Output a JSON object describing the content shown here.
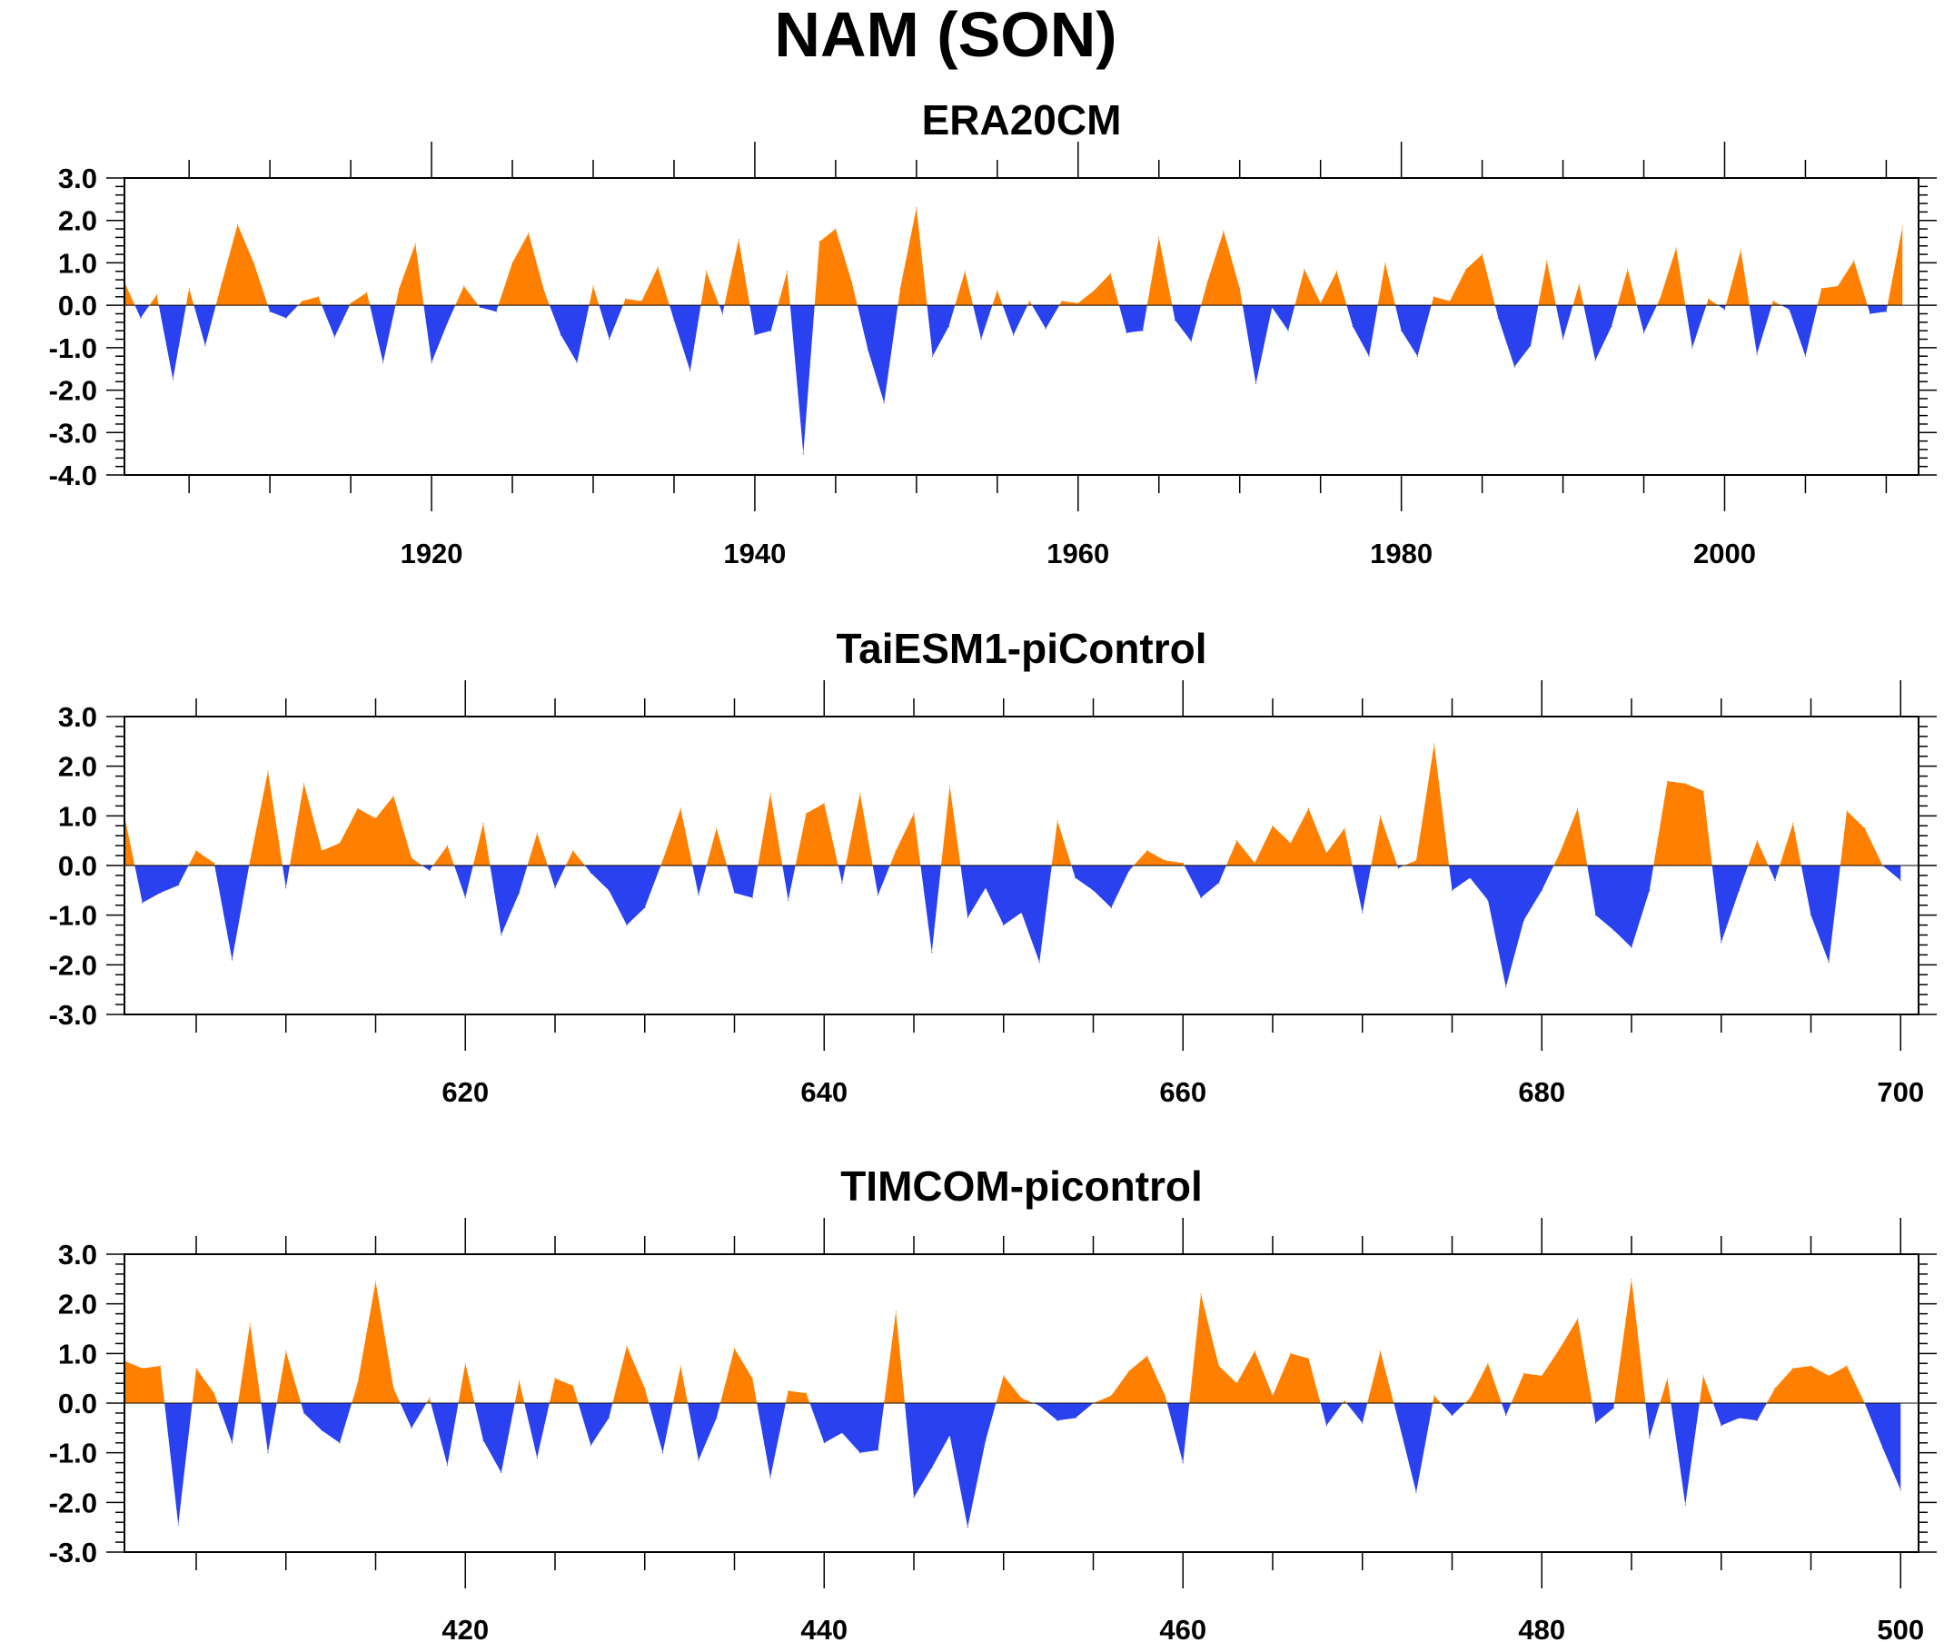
{
  "title": "NAM (SON)",
  "colors": {
    "positive": "#ff7f00",
    "negative": "#2a41f0",
    "axis": "#000000"
  },
  "chart_data": [
    {
      "type": "area",
      "title": "ERA20CM",
      "xlim": [
        1901,
        2012
      ],
      "ylim": [
        -4,
        3
      ],
      "yticks": [
        "-4.0",
        "-3.0",
        "-2.0",
        "-1.0",
        "0.0",
        "1.0",
        "2.0",
        "3.0"
      ],
      "xticks": [
        1920,
        1940,
        1960,
        1980,
        2000
      ],
      "grid": false,
      "x_start": 1901,
      "values": [
        0.55,
        -0.3,
        0.25,
        -1.75,
        0.4,
        -0.95,
        0.5,
        1.9,
        1.0,
        -0.15,
        -0.3,
        0.1,
        0.2,
        -0.75,
        0.05,
        0.3,
        -1.35,
        0.4,
        1.45,
        -1.35,
        -0.4,
        0.45,
        -0.05,
        -0.15,
        1.0,
        1.7,
        0.3,
        -0.7,
        -1.35,
        0.45,
        -0.8,
        0.15,
        0.1,
        0.9,
        -0.35,
        -1.55,
        0.8,
        -0.2,
        1.55,
        -0.7,
        -0.6,
        0.8,
        -3.5,
        1.5,
        1.8,
        0.55,
        -1.05,
        -2.3,
        0.4,
        2.3,
        -1.2,
        -0.5,
        0.8,
        -0.8,
        0.35,
        -0.7,
        0.1,
        -0.55,
        0.1,
        0.05,
        0.35,
        0.75,
        -0.65,
        -0.6,
        1.6,
        -0.35,
        -0.85,
        0.55,
        1.75,
        0.4,
        -1.85,
        -0.05,
        -0.6,
        0.85,
        0.05,
        0.8,
        -0.5,
        -1.2,
        1.0,
        -0.6,
        -1.2,
        0.2,
        0.1,
        0.85,
        1.2,
        -0.3,
        -1.45,
        -0.95,
        1.05,
        -0.8,
        0.5,
        -1.3,
        -0.5,
        0.85,
        -0.65,
        0.15,
        1.35,
        -1.0,
        0.15,
        -0.1,
        1.3,
        -1.15,
        0.1,
        -0.1,
        -1.2,
        0.4,
        0.45,
        1.05,
        -0.2,
        -0.15,
        1.85
      ]
    },
    {
      "type": "area",
      "title": "TaiESM1-piControl",
      "xlim": [
        601,
        701
      ],
      "ylim": [
        -3,
        3
      ],
      "yticks": [
        "-3.0",
        "-2.0",
        "-1.0",
        "0.0",
        "1.0",
        "2.0",
        "3.0"
      ],
      "xticks": [
        620,
        640,
        660,
        680,
        700
      ],
      "grid": false,
      "x_start": 601,
      "values": [
        1.0,
        -0.75,
        -0.55,
        -0.4,
        0.3,
        0.05,
        -1.9,
        0.1,
        1.9,
        -0.45,
        1.65,
        0.3,
        0.45,
        1.15,
        0.95,
        1.4,
        0.15,
        -0.1,
        0.4,
        -0.65,
        0.85,
        -1.4,
        -0.55,
        0.65,
        -0.45,
        0.3,
        -0.15,
        -0.5,
        -1.2,
        -0.85,
        0.1,
        1.15,
        -0.6,
        0.75,
        -0.55,
        -0.65,
        1.45,
        -0.7,
        1.05,
        1.25,
        -0.35,
        1.45,
        -0.6,
        0.3,
        1.05,
        -1.75,
        1.6,
        -1.05,
        -0.45,
        -1.2,
        -0.95,
        -1.95,
        0.9,
        -0.25,
        -0.5,
        -0.85,
        -0.1,
        0.3,
        0.1,
        0.05,
        -0.65,
        -0.35,
        0.5,
        0.05,
        0.8,
        0.45,
        1.15,
        0.25,
        0.75,
        -0.95,
        1.0,
        -0.05,
        0.1,
        2.45,
        -0.5,
        -0.25,
        -0.7,
        -2.45,
        -1.1,
        -0.5,
        0.25,
        1.15,
        -1.0,
        -1.3,
        -1.65,
        -0.5,
        1.7,
        1.65,
        1.5,
        -1.55,
        -0.5,
        0.5,
        -0.3,
        0.85,
        -1.0,
        -1.95,
        1.1,
        0.75,
        0.0,
        -0.3
      ]
    },
    {
      "type": "area",
      "title": "TIMCOM-picontrol",
      "xlim": [
        401,
        501
      ],
      "ylim": [
        -3,
        3
      ],
      "yticks": [
        "-3.0",
        "-2.0",
        "-1.0",
        "0.0",
        "1.0",
        "2.0",
        "3.0"
      ],
      "xticks": [
        420,
        440,
        460,
        480,
        500
      ],
      "grid": false,
      "x_start": 401,
      "values": [
        0.85,
        0.7,
        0.75,
        -2.45,
        0.7,
        0.2,
        -0.8,
        1.6,
        -1.0,
        1.05,
        -0.2,
        -0.55,
        -0.8,
        0.4,
        2.45,
        0.3,
        -0.5,
        0.1,
        -1.25,
        0.8,
        -0.75,
        -1.4,
        0.45,
        -1.1,
        0.5,
        0.35,
        -0.85,
        -0.3,
        1.15,
        0.3,
        -1.0,
        0.75,
        -1.15,
        -0.3,
        1.1,
        0.5,
        -1.5,
        0.25,
        0.2,
        -0.8,
        -0.6,
        -1.0,
        -0.95,
        1.85,
        -1.9,
        -1.3,
        -0.65,
        -2.5,
        -0.75,
        0.55,
        0.1,
        -0.05,
        -0.35,
        -0.3,
        0.0,
        0.15,
        0.65,
        0.95,
        0.15,
        -1.2,
        2.2,
        0.75,
        0.4,
        1.05,
        0.15,
        1.0,
        0.9,
        -0.45,
        0.05,
        -0.4,
        1.05,
        -0.35,
        -1.8,
        0.15,
        -0.25,
        0.1,
        0.8,
        -0.25,
        0.6,
        0.55,
        1.1,
        1.7,
        -0.4,
        -0.1,
        2.5,
        -0.7,
        0.5,
        -2.05,
        0.55,
        -0.45,
        -0.3,
        -0.35,
        0.3,
        0.7,
        0.75,
        0.55,
        0.75,
        0.0,
        -0.9,
        -1.75
      ]
    }
  ]
}
